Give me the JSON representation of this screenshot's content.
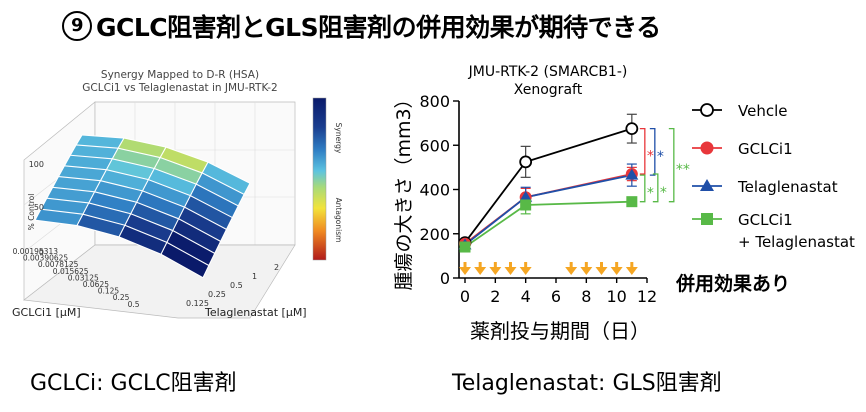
{
  "title": {
    "number": "9",
    "text": "GCLC阻害剤とGLS阻害剤の併用効果が期待できる"
  },
  "left_chart": {
    "title_line1": "Synergy Mapped to D-R (HSA)",
    "title_line2": "GCLCi1 vs Telaglenastat in JMU-RTK-2",
    "zlabel": "% Control",
    "z_ticks": [
      "0",
      "50",
      "100"
    ],
    "gclci_axis_label": "GCLCi1 [μM]",
    "gclci_ticks": [
      "0.00195313",
      "0.00390625",
      "0.0078125",
      "0.015625",
      "0.03125",
      "0.0625",
      "0.125",
      "0.25",
      "0.5"
    ],
    "tela_axis_label": "Telaglenastat [μM]",
    "tela_ticks": [
      "0.125",
      "0.25",
      "0.5",
      "1",
      "2"
    ],
    "colorbar_top": "Synergy",
    "colorbar_bottom": "Antagonism",
    "colors": {
      "synergy": "#1a3e8f",
      "antagonism": "#d63a1e"
    }
  },
  "chart_data": [
    {
      "type": "line",
      "title": "JMU-RTK-2 (SMARCB1-)",
      "subtitle": "Xenograft",
      "xlabel": "薬剤投与期間（日）",
      "ylabel": "腫瘍の大きさ（mm3）",
      "xlim": [
        0,
        12
      ],
      "ylim": [
        0,
        800
      ],
      "xticks": [
        0,
        2,
        4,
        6,
        8,
        10,
        12
      ],
      "yticks": [
        0,
        200,
        400,
        600,
        800
      ],
      "x": [
        0,
        4,
        11
      ],
      "series": [
        {
          "name": "Vehcle",
          "values": [
            160,
            525,
            675
          ],
          "errors": [
            15,
            70,
            65
          ],
          "color": "#000000",
          "marker": "circle-open"
        },
        {
          "name": "GCLCi1",
          "values": [
            155,
            365,
            470
          ],
          "errors": [
            12,
            40,
            30
          ],
          "color": "#e8373b",
          "marker": "circle"
        },
        {
          "name": "Telaglenastat",
          "values": [
            150,
            365,
            465
          ],
          "errors": [
            12,
            45,
            50
          ],
          "color": "#1f4fa8",
          "marker": "triangle"
        },
        {
          "name": "GCLCi1 + Telaglenastat",
          "legend_line1": "GCLCi1",
          "legend_line2": "+ Telaglenastat",
          "values": [
            140,
            330,
            345
          ],
          "errors": [
            10,
            40,
            20
          ],
          "color": "#58b947",
          "marker": "square"
        }
      ],
      "dosing_days": [
        0,
        1,
        2,
        3,
        4,
        7,
        8,
        9,
        10,
        11
      ],
      "significance": [
        {
          "label": "*",
          "color": "#e8373b"
        },
        {
          "label": "*",
          "color": "#1f4fa8"
        },
        {
          "label": "*",
          "color": "#58b947"
        },
        {
          "label": "*",
          "color": "#58b947"
        },
        {
          "label": "**",
          "color": "#58b947"
        }
      ],
      "annotation": "併用効果あり"
    }
  ],
  "footer": {
    "left": "GCLCi: GCLC阻害剤",
    "right": "Telaglenastat: GLS阻害剤"
  }
}
